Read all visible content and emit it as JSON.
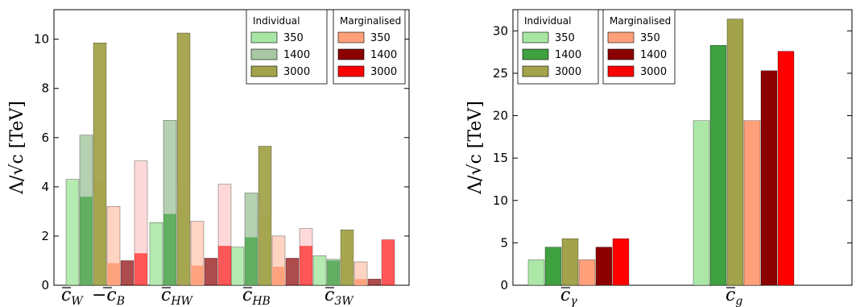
{
  "ylabel": "Λ/√c [TeV]",
  "colors": {
    "ind350": "#a8e6a3",
    "ind1400_left": "#a9c9a4",
    "ind1400_right": "#3fa040",
    "ind3000": "#a3a34b",
    "mar350": "#ffa07a",
    "mar1400": "#8b0000",
    "mar3000": "#ff0000"
  },
  "chart_data": [
    {
      "type": "bar",
      "ylim": [
        0,
        11.2
      ],
      "yticks": [
        "0",
        "2",
        "4",
        "6",
        "8",
        "10"
      ],
      "categories": [
        {
          "main": "c",
          "sub": "W",
          "extra_main": "−c",
          "extra_sub": "B"
        },
        {
          "main": "c",
          "sub": "HW"
        },
        {
          "main": "c",
          "sub": "HB"
        },
        {
          "main": "c",
          "sub": "3W"
        }
      ],
      "legends": [
        {
          "title": "Individual",
          "entries": [
            "350",
            "1400",
            "3000"
          ]
        },
        {
          "title": "Marginalised",
          "entries": [
            "350",
            "1400",
            "3000"
          ]
        }
      ],
      "series": [
        {
          "name": "Individual 350",
          "values": [
            4.3,
            2.55,
            1.55,
            1.2
          ]
        },
        {
          "name": "Individual 1400",
          "values": [
            6.1,
            6.7,
            3.75,
            1.05
          ]
        },
        {
          "name": "Individual 3000",
          "values": [
            9.85,
            10.25,
            5.65,
            2.25
          ]
        },
        {
          "name": "Marginalised 350",
          "values": [
            3.2,
            2.6,
            2.0,
            0.95
          ]
        },
        {
          "name": "Marginalised 1400",
          "values": [
            1.0,
            1.1,
            1.1,
            0.25
          ]
        },
        {
          "name": "Marginalised 3000",
          "values": [
            5.05,
            4.1,
            2.3,
            1.85
          ]
        }
      ],
      "overlay_series": [
        {
          "name": "Individual 1400 (inner)",
          "values": [
            3.6,
            2.9,
            1.95,
            1.0
          ]
        },
        {
          "name": "Individual 3000 (inner)",
          "values": [
            4.25,
            4.0,
            2.9,
            2.2
          ]
        },
        {
          "name": "Marginalised 350 (inner)",
          "values": [
            0.9,
            0.8,
            0.75,
            0.25
          ]
        },
        {
          "name": "Marginalised 1400 (inner)",
          "values": [
            1.0,
            1.1,
            1.1,
            0.25
          ]
        },
        {
          "name": "Marginalised 3000 (inner)",
          "values": [
            1.3,
            1.6,
            1.6,
            1.85
          ]
        }
      ]
    },
    {
      "type": "bar",
      "ylim": [
        0,
        32.5
      ],
      "yticks": [
        "0",
        "5",
        "10",
        "15",
        "20",
        "25",
        "30"
      ],
      "categories": [
        {
          "main": "c",
          "sub": "γ"
        },
        {
          "main": "c",
          "sub": "g"
        }
      ],
      "legends": [
        {
          "title": "Individual",
          "entries": [
            "350",
            "1400",
            "3000"
          ]
        },
        {
          "title": "Marginalised",
          "entries": [
            "350",
            "1400",
            "3000"
          ]
        }
      ],
      "series": [
        {
          "name": "Individual 350",
          "values": [
            3.0,
            19.4
          ]
        },
        {
          "name": "Individual 1400",
          "values": [
            4.5,
            28.3
          ]
        },
        {
          "name": "Individual 3000",
          "values": [
            5.5,
            31.4
          ]
        },
        {
          "name": "Marginalised 350",
          "values": [
            3.0,
            19.4
          ]
        },
        {
          "name": "Marginalised 1400",
          "values": [
            4.5,
            25.3
          ]
        },
        {
          "name": "Marginalised 3000",
          "values": [
            5.5,
            27.6
          ]
        }
      ]
    }
  ]
}
